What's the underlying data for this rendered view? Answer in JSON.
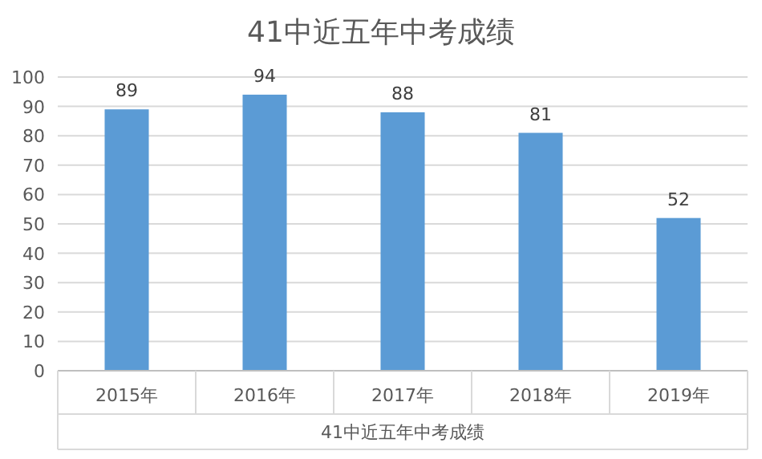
{
  "chart_data": {
    "type": "bar",
    "title": "41中近五年中考成绩",
    "xlabel": "41中近五年中考成绩",
    "categories": [
      "2015年",
      "2016年",
      "2017年",
      "2018年",
      "2019年"
    ],
    "values": [
      89,
      94,
      88,
      81,
      52
    ],
    "color": "#5b9bd5",
    "ylim": [
      0,
      100
    ],
    "yticks": [
      0,
      10,
      20,
      30,
      40,
      50,
      60,
      70,
      80,
      90,
      100
    ],
    "grid": "y",
    "data_labels": true
  }
}
